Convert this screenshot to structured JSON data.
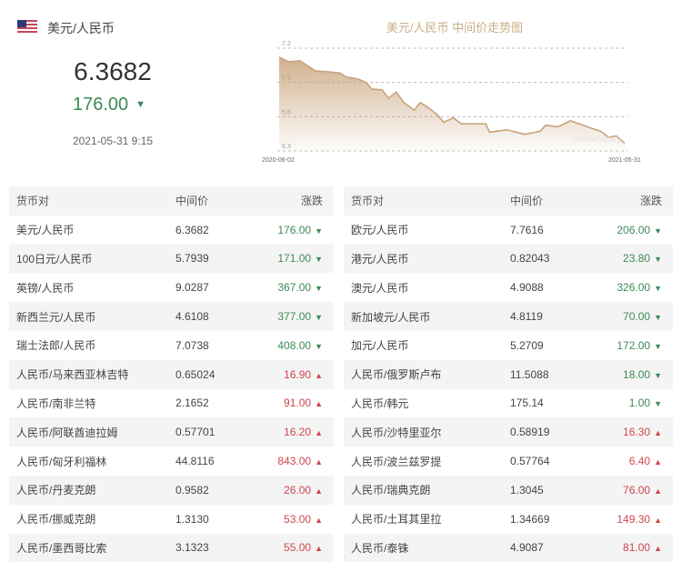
{
  "header": {
    "flag_icon": "us-flag-icon",
    "pair": "美元/人民币",
    "price": "6.3682",
    "change": "176.00",
    "direction": "down",
    "time": "2021-05-31 9:15"
  },
  "colors": {
    "down": "#3c8a55",
    "up": "#d0454f",
    "chart_line": "#c8a27a"
  },
  "chart_data": {
    "type": "area",
    "title": "美元/人民币 中间价走势图",
    "watermark": "chinamoney",
    "ylim": [
      6.3,
      7.2
    ],
    "yticks": [
      "7.2",
      "6.9",
      "6.6",
      "6.3"
    ],
    "xticks": [
      "2020-06-02",
      "2021-05-31"
    ],
    "grid": true,
    "x": [
      "2020-06-02",
      "2020-06-12",
      "2020-06-24",
      "2020-07-10",
      "2020-07-23",
      "2020-08-05",
      "2020-08-11",
      "2020-08-24",
      "2020-09-02",
      "2020-09-07",
      "2020-09-18",
      "2020-09-25",
      "2020-10-03",
      "2020-10-11",
      "2020-10-22",
      "2020-10-28",
      "2020-11-05",
      "2020-11-15",
      "2020-11-22",
      "2020-12-02",
      "2020-12-10",
      "2021-01-05",
      "2021-01-09",
      "2021-01-27",
      "2021-02-15",
      "2021-03-03",
      "2021-03-09",
      "2021-03-22",
      "2021-04-04",
      "2021-04-13",
      "2021-04-26",
      "2021-05-06",
      "2021-05-14",
      "2021-05-22",
      "2021-05-31"
    ],
    "y": [
      7.121,
      7.081,
      7.089,
      7.001,
      6.994,
      6.983,
      6.949,
      6.93,
      6.896,
      6.843,
      6.835,
      6.763,
      6.816,
      6.724,
      6.657,
      6.724,
      6.684,
      6.618,
      6.551,
      6.591,
      6.538,
      6.538,
      6.464,
      6.485,
      6.446,
      6.472,
      6.525,
      6.512,
      6.565,
      6.538,
      6.499,
      6.472,
      6.419,
      6.432,
      6.3682
    ]
  },
  "table": {
    "headers": [
      "货币对",
      "中间价",
      "涨跌"
    ],
    "left": [
      {
        "pair": "美元/人民币",
        "mid": "6.3682",
        "chg": "176.00",
        "dir": "down"
      },
      {
        "pair": "100日元/人民币",
        "mid": "5.7939",
        "chg": "171.00",
        "dir": "down"
      },
      {
        "pair": "英镑/人民币",
        "mid": "9.0287",
        "chg": "367.00",
        "dir": "down"
      },
      {
        "pair": "新西兰元/人民币",
        "mid": "4.6108",
        "chg": "377.00",
        "dir": "down"
      },
      {
        "pair": "瑞士法郎/人民币",
        "mid": "7.0738",
        "chg": "408.00",
        "dir": "down"
      },
      {
        "pair": "人民币/马来西亚林吉特",
        "mid": "0.65024",
        "chg": "16.90",
        "dir": "up"
      },
      {
        "pair": "人民币/南非兰特",
        "mid": "2.1652",
        "chg": "91.00",
        "dir": "up"
      },
      {
        "pair": "人民币/阿联酋迪拉姆",
        "mid": "0.57701",
        "chg": "16.20",
        "dir": "up"
      },
      {
        "pair": "人民币/匈牙利福林",
        "mid": "44.8116",
        "chg": "843.00",
        "dir": "up"
      },
      {
        "pair": "人民币/丹麦克朗",
        "mid": "0.9582",
        "chg": "26.00",
        "dir": "up"
      },
      {
        "pair": "人民币/挪威克朗",
        "mid": "1.3130",
        "chg": "53.00",
        "dir": "up"
      },
      {
        "pair": "人民币/墨西哥比索",
        "mid": "3.1323",
        "chg": "55.00",
        "dir": "up"
      }
    ],
    "right": [
      {
        "pair": "欧元/人民币",
        "mid": "7.7616",
        "chg": "206.00",
        "dir": "down"
      },
      {
        "pair": "港元/人民币",
        "mid": "0.82043",
        "chg": "23.80",
        "dir": "down"
      },
      {
        "pair": "澳元/人民币",
        "mid": "4.9088",
        "chg": "326.00",
        "dir": "down"
      },
      {
        "pair": "新加坡元/人民币",
        "mid": "4.8119",
        "chg": "70.00",
        "dir": "down"
      },
      {
        "pair": "加元/人民币",
        "mid": "5.2709",
        "chg": "172.00",
        "dir": "down"
      },
      {
        "pair": "人民币/俄罗斯卢布",
        "mid": "11.5088",
        "chg": "18.00",
        "dir": "down"
      },
      {
        "pair": "人民币/韩元",
        "mid": "175.14",
        "chg": "1.00",
        "dir": "down"
      },
      {
        "pair": "人民币/沙特里亚尔",
        "mid": "0.58919",
        "chg": "16.30",
        "dir": "up"
      },
      {
        "pair": "人民币/波兰兹罗提",
        "mid": "0.57764",
        "chg": "6.40",
        "dir": "up"
      },
      {
        "pair": "人民币/瑞典克朗",
        "mid": "1.3045",
        "chg": "76.00",
        "dir": "up"
      },
      {
        "pair": "人民币/土耳其里拉",
        "mid": "1.34669",
        "chg": "149.30",
        "dir": "up"
      },
      {
        "pair": "人民币/泰铢",
        "mid": "4.9087",
        "chg": "81.00",
        "dir": "up"
      }
    ]
  }
}
